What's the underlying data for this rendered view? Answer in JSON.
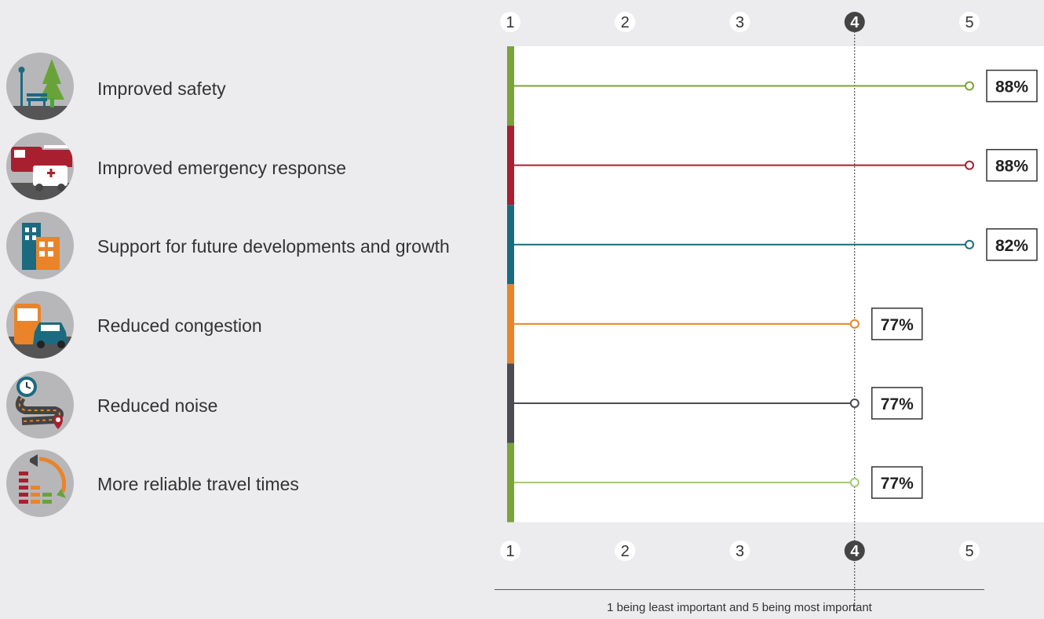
{
  "chart_data": {
    "type": "line",
    "title": "",
    "xlabel": "",
    "ylabel": "",
    "xlim": [
      1,
      5
    ],
    "ticks": [
      "1",
      "2",
      "3",
      "4",
      "5"
    ],
    "highlight_tick": "4",
    "reference_line": 4,
    "categories": [
      "Improved safety",
      "Improved emergency response",
      "Support for future developments and growth",
      "Reduced congestion",
      "Reduced noise",
      "More reliable travel times"
    ],
    "values": [
      5,
      5,
      5,
      4,
      4,
      4
    ],
    "percent_labels": [
      "88%",
      "88%",
      "82%",
      "77%",
      "77%",
      "77%"
    ],
    "colors": [
      "#7aa33a",
      "#a8202f",
      "#1b6a80",
      "#e9842a",
      "#4b4b53",
      "#a3c97b"
    ],
    "bar_colors": [
      "#7aa33a",
      "#a8202f",
      "#1b6a80",
      "#e9842a",
      "#4b4b53",
      "#7aa33a"
    ]
  },
  "icons": [
    "park-bench-tree-icon",
    "fire-truck-ambulance-icon",
    "buildings-icon",
    "bus-car-icon",
    "winding-road-clock-icon",
    "speed-gauge-icon"
  ],
  "footnote": "1 being least important and 5 being most important"
}
